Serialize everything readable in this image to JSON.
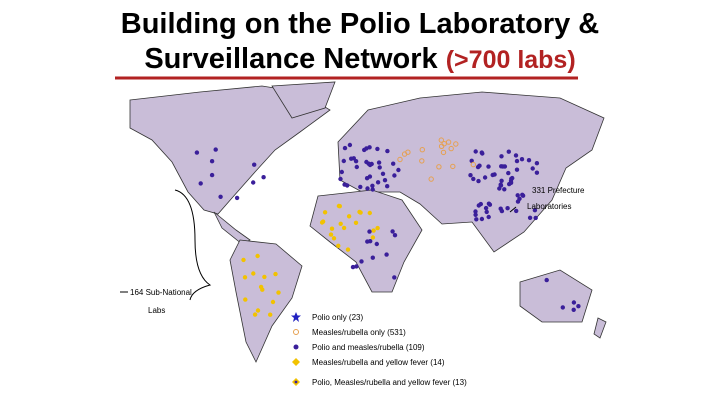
{
  "header": {
    "title_line1": "Building on the Polio Laboratory &",
    "title_line2": "Surveillance Network",
    "title_highlight": "(>700 labs)"
  },
  "annotations": {
    "prefecture_line1": "331 Prefecture",
    "prefecture_line2": "Laboratories",
    "subnational_line1": "164 Sub-National",
    "subnational_line2": "Labs"
  },
  "legend": [
    "Polio only (23)",
    "Measles/rubella only (531)",
    "Polio and measles/rubella (109)",
    "Measles/rubella and yellow fever (14)",
    "Polio, Measles/rubella and yellow fever (13)"
  ]
}
